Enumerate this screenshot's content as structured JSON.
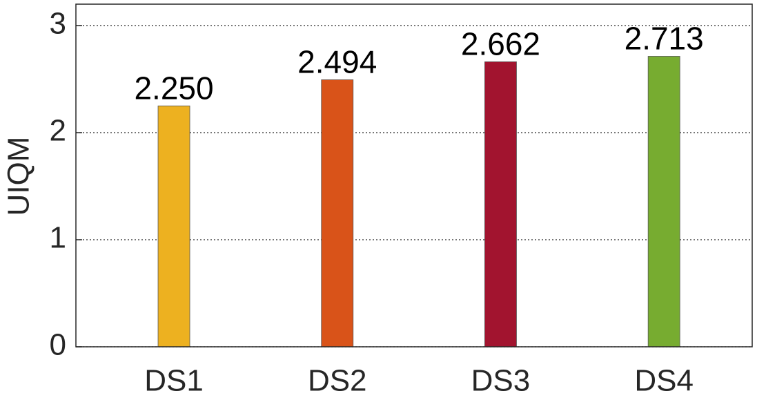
{
  "chart_data": {
    "type": "bar",
    "ylabel": "UIQM",
    "categories": [
      "DS1",
      "DS2",
      "DS3",
      "DS4"
    ],
    "values": [
      2.25,
      2.494,
      2.662,
      2.713
    ],
    "value_labels": [
      "2.250",
      "2.494",
      "2.662",
      "2.713"
    ],
    "colors": [
      "#EDB120",
      "#D95319",
      "#A2142F",
      "#77AC30"
    ],
    "ylim": [
      0,
      3.2
    ],
    "yticks": [
      0,
      1,
      2,
      3
    ],
    "grid": true
  }
}
